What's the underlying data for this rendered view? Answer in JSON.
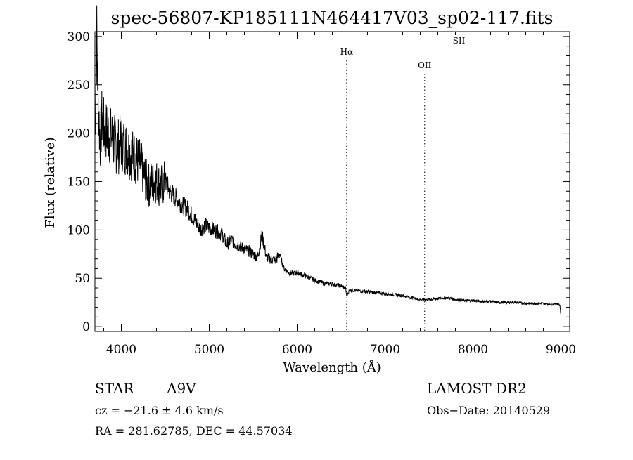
{
  "chart_data": {
    "type": "line",
    "title": "spec-56807-KP185111N464417V03_sp02-117.fits",
    "xlabel": "Wavelength (Å)",
    "ylabel": "Flux (relative)",
    "xlim": [
      3700,
      9100
    ],
    "ylim": [
      -5,
      305
    ],
    "xticks": [
      4000,
      5000,
      6000,
      7000,
      8000,
      9000
    ],
    "yticks": [
      0,
      50,
      100,
      150,
      200,
      250,
      300
    ],
    "grid": false,
    "series": [
      {
        "x": [
          3700,
          3720,
          3740,
          3760,
          3780,
          3800,
          3850,
          3900,
          3950,
          4000,
          4050,
          4100,
          4150,
          4200,
          4250,
          4300,
          4350,
          4400,
          4450,
          4500,
          4550,
          4600,
          4650,
          4700,
          4750,
          4800,
          4850,
          4900,
          4950,
          5000,
          5050,
          5100,
          5150,
          5200,
          5250,
          5300,
          5350,
          5400,
          5450,
          5500,
          5550,
          5600,
          5650,
          5700,
          5750,
          5800,
          5850,
          5900,
          5950,
          6000,
          6100,
          6200,
          6300,
          6400,
          6500,
          6550,
          6563,
          6600,
          6700,
          6800,
          6900,
          7000,
          7100,
          7200,
          7300,
          7400,
          7500,
          7600,
          7700,
          7800,
          7900,
          8000,
          8100,
          8200,
          8300,
          8400,
          8500,
          8600,
          8700,
          8800,
          8900,
          8950,
          8990,
          9000
        ],
        "values": [
          195,
          300,
          225,
          190,
          215,
          205,
          200,
          195,
          185,
          190,
          185,
          180,
          175,
          170,
          160,
          145,
          150,
          150,
          145,
          150,
          140,
          135,
          130,
          125,
          122,
          115,
          108,
          100,
          105,
          102,
          100,
          98,
          95,
          85,
          90,
          85,
          83,
          80,
          78,
          75,
          72,
          95,
          72,
          70,
          68,
          75,
          60,
          56,
          55,
          56,
          52,
          48,
          45,
          44,
          42,
          40,
          32,
          38,
          37,
          36,
          35,
          34,
          33,
          32,
          30,
          28,
          28,
          29,
          30,
          28,
          27,
          27,
          26,
          26,
          25,
          25,
          25,
          24,
          24,
          24,
          23,
          24,
          22,
          10
        ]
      }
    ],
    "annotations": [
      {
        "label": "Hα",
        "x": 6563
      },
      {
        "label": "OII",
        "x": 7450
      },
      {
        "label": "SII",
        "x": 7840
      }
    ]
  },
  "info": {
    "class_label": "STAR",
    "subclass": "A9V",
    "survey": "LAMOST DR2",
    "cz": "cz = −21.6 ± 4.6 km/s",
    "obs_date": "Obs−Date: 20140529",
    "radec": "RA = 281.62785, DEC =  44.57034"
  }
}
